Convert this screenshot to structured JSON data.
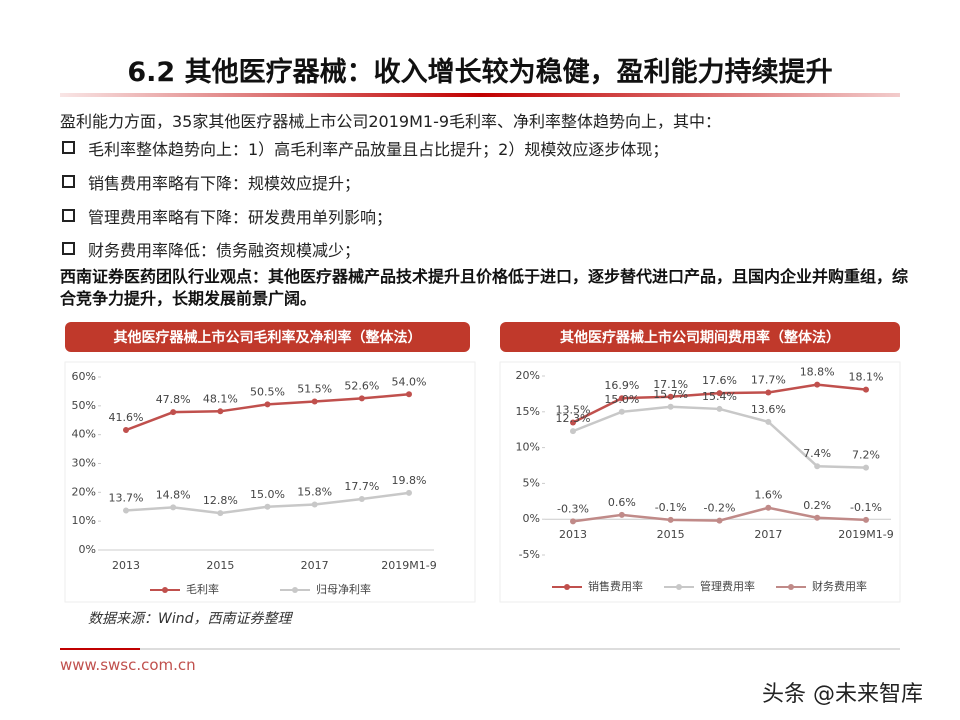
{
  "header": {
    "title": "6.2 其他医疗器械：收入增长较为稳健，盈利能力持续提升"
  },
  "body": {
    "intro": "盈利能力方面，35家其他医疗器械上市公司2019M1-9毛利率、净利率整体趋势向上，其中：",
    "bullets": [
      "毛利率整体趋势向上：1）高毛利率产品放量且占比提升；2）规模效应逐步体现；",
      "销售费用率略有下降：规模效应提升；",
      "管理费用率略有下降：研发费用单列影响；",
      "财务费用率降低：债务融资规模减少；"
    ],
    "view": "西南证券医药团队行业观点：其他医疗器械产品技术提升且价格低于进口，逐步替代进口产品，且国内企业并购重组，综合竞争力提升，长期发展前景广阔。"
  },
  "chart_data": [
    {
      "type": "line",
      "title": "其他医疗器械上市公司毛利率及净利率（整体法）",
      "categories": [
        "2013",
        null,
        "2015",
        null,
        "2017",
        null,
        "2019M1-9"
      ],
      "series": [
        {
          "name": "毛利率",
          "color": "#c0504d",
          "values": [
            41.6,
            47.8,
            48.1,
            50.5,
            51.5,
            52.6,
            54.0
          ],
          "value_labels": [
            "41.6%",
            "47.8%",
            "48.1%",
            "50.5%",
            "51.5%",
            "52.6%",
            "54.0%"
          ]
        },
        {
          "name": "归母净利率",
          "color": "#c8c8c8",
          "values": [
            13.7,
            14.8,
            12.8,
            15.0,
            15.8,
            17.7,
            19.8
          ],
          "value_labels": [
            "13.7%",
            "14.8%",
            "12.8%",
            "15.0%",
            "15.8%",
            "17.7%",
            "19.8%"
          ]
        }
      ],
      "ylim": [
        0,
        60
      ],
      "yticks": [
        {
          "value": 0,
          "label": "0%"
        },
        {
          "value": 10,
          "label": "10%"
        },
        {
          "value": 20,
          "label": "20%"
        },
        {
          "value": 30,
          "label": "30%"
        },
        {
          "value": 40,
          "label": "40%"
        },
        {
          "value": 50,
          "label": "50%"
        },
        {
          "value": 60,
          "label": "60%"
        }
      ],
      "grid": false,
      "legend": "bottom"
    },
    {
      "type": "line",
      "title": "其他医疗器械上市公司期间费用率（整体法）",
      "categories": [
        "2013",
        null,
        "2015",
        null,
        "2017",
        null,
        "2019M1-9"
      ],
      "series": [
        {
          "name": "销售费用率",
          "color": "#c0504d",
          "values": [
            13.5,
            16.9,
            17.1,
            17.6,
            17.7,
            18.8,
            18.1
          ],
          "value_labels": [
            "13.5%",
            "16.9%",
            "17.1%",
            "17.6%",
            "17.7%",
            "18.8%",
            "18.1%"
          ]
        },
        {
          "name": "管理费用率",
          "color": "#c8c8c8",
          "values": [
            12.3,
            15.0,
            15.7,
            15.4,
            13.6,
            7.4,
            7.2
          ],
          "value_labels": [
            "12.3%",
            "15.0%",
            "15.7%",
            "15.4%",
            "13.6%",
            "7.4%",
            "7.2%"
          ]
        },
        {
          "name": "财务费用率",
          "color": "#c08a88",
          "values": [
            -0.3,
            0.6,
            -0.1,
            -0.2,
            1.6,
            0.2,
            -0.1
          ],
          "value_labels": [
            "-0.3%",
            "0.6%",
            "-0.1%",
            "-0.2%",
            "1.6%",
            "0.2%",
            "-0.1%"
          ]
        }
      ],
      "ylim": [
        -5,
        20
      ],
      "yticks": [
        {
          "value": -5,
          "label": "-5%"
        },
        {
          "value": 0,
          "label": "0%"
        },
        {
          "value": 5,
          "label": "5%"
        },
        {
          "value": 10,
          "label": "10%"
        },
        {
          "value": 15,
          "label": "15%"
        },
        {
          "value": 20,
          "label": "20%"
        }
      ],
      "grid": false,
      "legend": "bottom"
    }
  ],
  "source": "数据来源：Wind，西南证券整理",
  "footer": {
    "url": "www.swsc.com.cn"
  },
  "watermark": "头条 @未来智库"
}
